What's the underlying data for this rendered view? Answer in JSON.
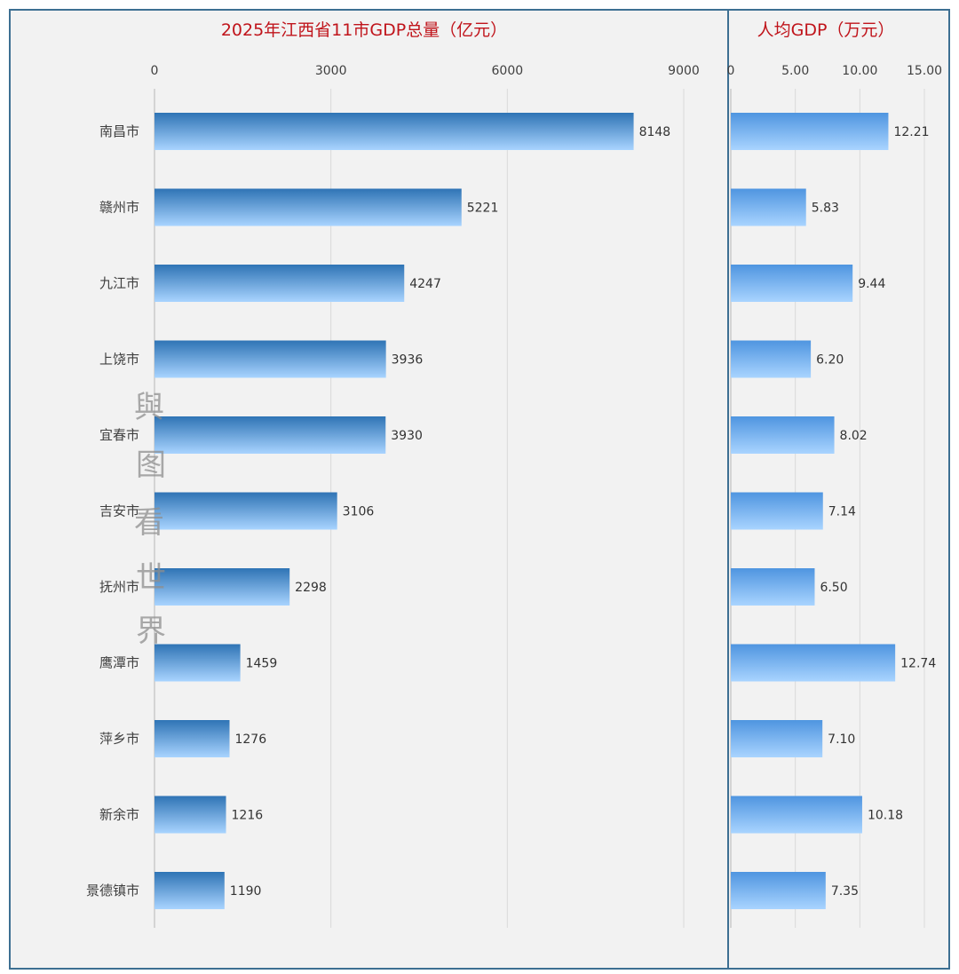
{
  "chart_data": [
    {
      "type": "bar",
      "orientation": "horizontal",
      "title": "2025年江西省11市GDP总量（亿元）",
      "categories": [
        "南昌市",
        "赣州市",
        "九江市",
        "上饶市",
        "宜春市",
        "吉安市",
        "抚州市",
        "鹰潭市",
        "萍乡市",
        "新余市",
        "景德镇市"
      ],
      "values": [
        8148,
        5221,
        4247,
        3936,
        3930,
        3106,
        2298,
        1459,
        1276,
        1216,
        1190
      ],
      "value_labels": [
        "8148",
        "5221",
        "4247",
        "3936",
        "3930",
        "3106",
        "2298",
        "1459",
        "1276",
        "1216",
        "1190"
      ],
      "xlim": [
        0,
        9000
      ],
      "ticks": [
        "0",
        "3000",
        "6000",
        "9000"
      ],
      "tick_values": [
        0,
        3000,
        6000,
        9000
      ],
      "gridlines": true,
      "bar_color_top": "#2f74b5",
      "bar_color_bottom": "#a9d4ff"
    },
    {
      "type": "bar",
      "orientation": "horizontal",
      "title": "人均GDP（万元）",
      "categories": [
        "南昌市",
        "赣州市",
        "九江市",
        "上饶市",
        "宜春市",
        "吉安市",
        "抚州市",
        "鹰潭市",
        "萍乡市",
        "新余市",
        "景德镇市"
      ],
      "values": [
        12.21,
        5.83,
        9.44,
        6.2,
        8.02,
        7.14,
        6.5,
        12.74,
        7.1,
        10.18,
        7.35
      ],
      "value_labels": [
        "12.21",
        "5.83",
        "9.44",
        "6.20",
        "8.02",
        "7.14",
        "6.50",
        "12.74",
        "7.10",
        "10.18",
        "7.35"
      ],
      "xlim": [
        0,
        15
      ],
      "ticks": [
        "0",
        "5.00",
        "10.00",
        "15.00"
      ],
      "tick_values": [
        0,
        5,
        10,
        15
      ],
      "gridlines": true,
      "bar_color_top": "#4f95e0",
      "bar_color_bottom": "#a9d4ff"
    }
  ],
  "watermark": [
    "與",
    "图",
    "看",
    "世",
    "界"
  ],
  "colors": {
    "frame": "#3d6f92",
    "background": "#f2f2f2",
    "title": "#c0141b"
  }
}
